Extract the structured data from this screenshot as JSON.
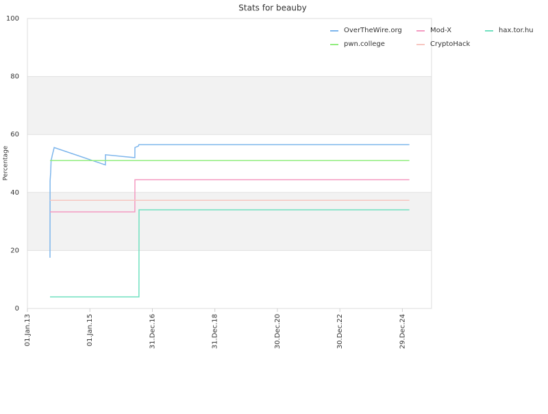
{
  "chart_data": {
    "type": "line",
    "title": "Stats for beauby",
    "y_label": "Percentage",
    "xlim": [
      "2013-01-01",
      "2025-12-05"
    ],
    "xticks": [
      {
        "value": "2013-01-01",
        "label": "01.Jan.13"
      },
      {
        "value": "2015-01-01",
        "label": "01.Jan.15"
      },
      {
        "value": "2016-12-31",
        "label": "31.Dec.16"
      },
      {
        "value": "2018-12-31",
        "label": "31.Dec.18"
      },
      {
        "value": "2020-12-30",
        "label": "30.Dec.20"
      },
      {
        "value": "2022-12-30",
        "label": "30.Dec.22"
      },
      {
        "value": "2024-12-29",
        "label": "29.Dec.24"
      }
    ],
    "ylim": [
      0,
      100
    ],
    "yticks": [
      0,
      20,
      40,
      60,
      80,
      100
    ],
    "grid": true,
    "legend": "top-right",
    "series": [
      {
        "name": "OverTheWire.org",
        "color": "#7cb5ec",
        "x": [
          "2013-09-22",
          "2013-09-23",
          "2013-09-30",
          "2013-10-05",
          "2013-10-20",
          "2013-11-10",
          "2015-07-01",
          "2015-07-02",
          "2016-06-09",
          "2016-06-10",
          "2016-07-20",
          "2016-07-27",
          "2025-03-21"
        ],
        "values": [
          17.5,
          44,
          47,
          51,
          53,
          55.5,
          49.5,
          53,
          52,
          55.5,
          56,
          56.5,
          56.5
        ]
      },
      {
        "name": "pwn.college",
        "color": "#90ed7d",
        "x": [
          "2013-09-22",
          "2025-03-21"
        ],
        "values": [
          51,
          51
        ]
      },
      {
        "name": "Mod-X",
        "color": "#f49ac1",
        "x": [
          "2013-09-22",
          "2016-06-09",
          "2016-06-10",
          "2025-03-21"
        ],
        "values": [
          33.3,
          33.3,
          44.4,
          44.4
        ]
      },
      {
        "name": "CryptoHack",
        "color": "#f7c6c0",
        "x": [
          "2013-09-22",
          "2025-03-21"
        ],
        "values": [
          37.3,
          37.3
        ]
      },
      {
        "name": "hax.tor.hu",
        "color": "#6fe0bf",
        "x": [
          "2013-09-22",
          "2016-07-27",
          "2016-07-28",
          "2025-03-21"
        ],
        "values": [
          4,
          4,
          34,
          34
        ]
      }
    ]
  }
}
